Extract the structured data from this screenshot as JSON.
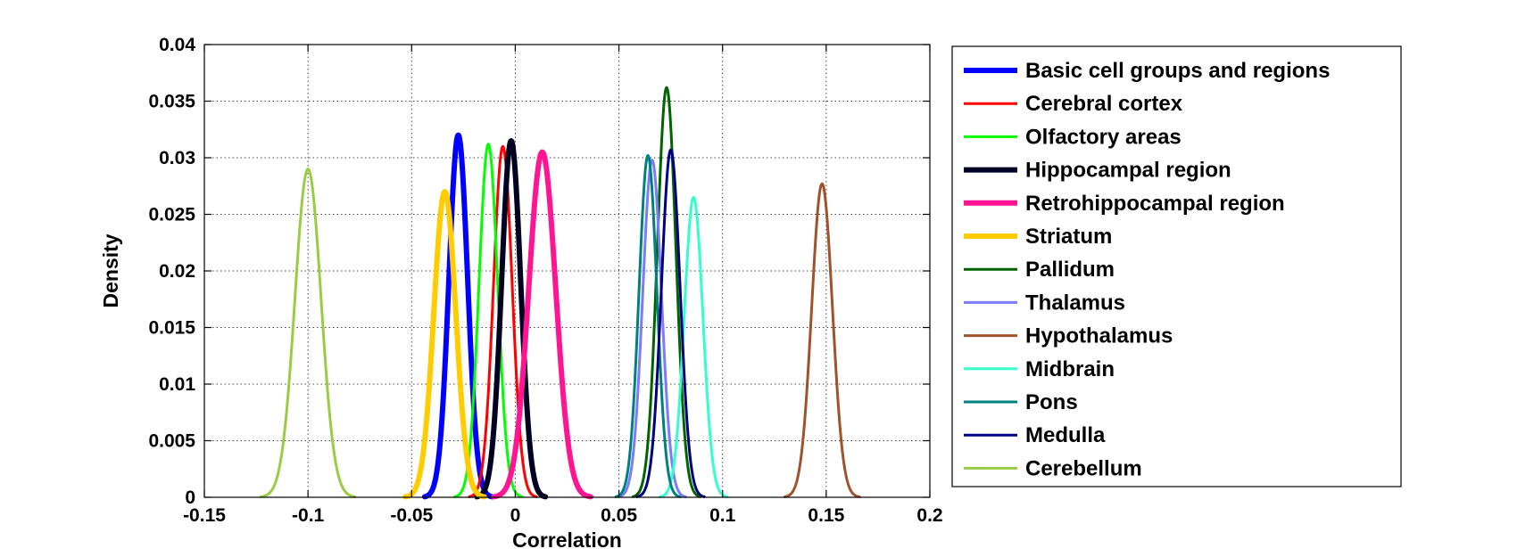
{
  "chart_data": {
    "type": "line",
    "title": "",
    "xlabel": "Correlation",
    "ylabel": "Density",
    "xlim": [
      -0.15,
      0.2
    ],
    "ylim": [
      0,
      0.04
    ],
    "xticks": [
      -0.15,
      -0.1,
      -0.05,
      0,
      0.05,
      0.1,
      0.15,
      0.2
    ],
    "xtick_labels": [
      "-0.15",
      "-0.1",
      "-0.05",
      "0",
      "0.05",
      "0.1",
      "0.15",
      "0.2"
    ],
    "yticks": [
      0,
      0.005,
      0.01,
      0.015,
      0.02,
      0.025,
      0.03,
      0.035,
      0.04
    ],
    "ytick_labels": [
      "0",
      "0.005",
      "0.01",
      "0.015",
      "0.02",
      "0.025",
      "0.03",
      "0.035",
      "0.04"
    ],
    "grid": true,
    "legend_position": "outside-right",
    "series": [
      {
        "name": "Basic cell groups and regions",
        "color": "#0000ff",
        "mean": -0.0275,
        "sd": 0.0045,
        "peak": 0.032,
        "bold": true
      },
      {
        "name": "Cerebral cortex",
        "color": "#ff0000",
        "mean": -0.006,
        "sd": 0.0045,
        "peak": 0.031,
        "bold": false
      },
      {
        "name": "Olfactory areas",
        "color": "#00ff00",
        "mean": -0.013,
        "sd": 0.0045,
        "peak": 0.0312,
        "bold": false
      },
      {
        "name": "Hippocampal region",
        "color": "#000022",
        "mean": -0.002,
        "sd": 0.0046,
        "peak": 0.0315,
        "bold": true
      },
      {
        "name": "Retrohippocampal region",
        "color": "#ff1493",
        "mean": 0.013,
        "sd": 0.0065,
        "peak": 0.0305,
        "bold": true
      },
      {
        "name": "Striatum",
        "color": "#ffcc00",
        "mean": -0.034,
        "sd": 0.0053,
        "peak": 0.027,
        "bold": true
      },
      {
        "name": "Pallidum",
        "color": "#006400",
        "mean": 0.073,
        "sd": 0.0045,
        "peak": 0.0362,
        "bold": false
      },
      {
        "name": "Thalamus",
        "color": "#7b7bff",
        "mean": 0.066,
        "sd": 0.0045,
        "peak": 0.0298,
        "bold": false
      },
      {
        "name": "Hypothalamus",
        "color": "#a0522d",
        "mean": 0.148,
        "sd": 0.005,
        "peak": 0.0277,
        "bold": false
      },
      {
        "name": "Midbrain",
        "color": "#33ffcc",
        "mean": 0.086,
        "sd": 0.0045,
        "peak": 0.0265,
        "bold": false
      },
      {
        "name": "Pons",
        "color": "#008080",
        "mean": 0.064,
        "sd": 0.0043,
        "peak": 0.0302,
        "bold": false
      },
      {
        "name": "Medulla",
        "color": "#000080",
        "mean": 0.075,
        "sd": 0.0045,
        "peak": 0.0307,
        "bold": false
      },
      {
        "name": "Cerebellum",
        "color": "#99cc44",
        "mean": -0.1,
        "sd": 0.0063,
        "peak": 0.029,
        "bold": false
      }
    ]
  }
}
